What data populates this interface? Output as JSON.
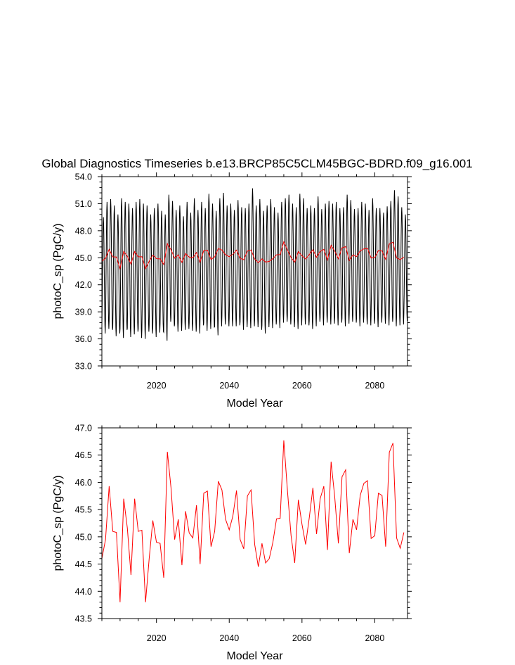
{
  "figure": {
    "title": "Global Diagnostics Timeseries b.e13.BRCP85C5CLM45BGC-BDRD.f09_g16.001"
  },
  "colors": {
    "monthly_line": "#000000",
    "annual_line": "#ff0000",
    "axes": "#000000"
  },
  "chart_data": [
    {
      "type": "line",
      "xlabel": "Model Year",
      "ylabel": "photoC_sp (PgC/y)",
      "xlim": [
        2005,
        2089
      ],
      "ylim": [
        33.0,
        54.0
      ],
      "x_ticks": [
        2020,
        2040,
        2060,
        2080
      ],
      "y_ticks": [
        "33.0",
        "36.0",
        "39.0",
        "42.0",
        "45.0",
        "48.0",
        "51.0",
        "54.0"
      ],
      "series": [
        {
          "role": "monthly",
          "color": "#000000",
          "years": [
            2005,
            2006,
            2007,
            2008,
            2009,
            2010,
            2011,
            2012,
            2013,
            2014,
            2015,
            2016,
            2017,
            2018,
            2019,
            2020,
            2021,
            2022,
            2023,
            2024,
            2025,
            2026,
            2027,
            2028,
            2029,
            2030,
            2031,
            2032,
            2033,
            2034,
            2035,
            2036,
            2037,
            2038,
            2039,
            2040,
            2041,
            2042,
            2043,
            2044,
            2045,
            2046,
            2047,
            2048,
            2049,
            2050,
            2051,
            2052,
            2053,
            2054,
            2055,
            2056,
            2057,
            2058,
            2059,
            2060,
            2061,
            2062,
            2063,
            2064,
            2065,
            2066,
            2067,
            2068,
            2069,
            2070,
            2071,
            2072,
            2073,
            2074,
            2075,
            2076,
            2077,
            2078,
            2079,
            2080,
            2081,
            2082,
            2083,
            2084,
            2085,
            2086,
            2087,
            2088
          ],
          "annual_max": [
            49.5,
            51.2,
            51.5,
            50.8,
            49.8,
            51.6,
            51.2,
            51.0,
            50.5,
            51.2,
            51.5,
            51.0,
            50.8,
            49.8,
            50.5,
            51.0,
            50.2,
            49.8,
            52.0,
            51.3,
            50.3,
            50.8,
            49.6,
            51.2,
            50.0,
            51.6,
            50.3,
            51.2,
            50.5,
            52.1,
            51.0,
            50.2,
            51.6,
            52.2,
            50.8,
            51.0,
            50.3,
            51.4,
            50.6,
            50.5,
            51.0,
            52.7,
            50.8,
            51.5,
            50.2,
            50.8,
            51.5,
            50.6,
            50.0,
            51.2,
            51.6,
            52.0,
            51.0,
            50.6,
            52.1,
            51.6,
            50.5,
            50.8,
            50.5,
            51.8,
            50.4,
            51.0,
            51.3,
            51.0,
            51.2,
            50.5,
            50.6,
            52.0,
            51.4,
            50.4,
            50.5,
            51.2,
            51.0,
            50.3,
            51.6,
            50.5,
            50.5,
            50.0,
            50.7,
            51.3,
            52.5,
            51.8,
            50.6,
            49.8
          ],
          "annual_min": [
            36.6,
            37.1,
            37.0,
            36.3,
            36.6,
            36.1,
            37.0,
            36.2,
            36.5,
            36.8,
            36.1,
            36.0,
            36.8,
            36.6,
            36.2,
            36.7,
            36.8,
            35.8,
            37.9,
            37.4,
            36.8,
            36.9,
            37.0,
            37.1,
            36.9,
            36.8,
            36.6,
            37.5,
            36.9,
            37.1,
            37.3,
            36.4,
            37.4,
            37.6,
            37.4,
            37.4,
            37.4,
            37.5,
            37.0,
            37.3,
            37.2,
            37.4,
            37.3,
            37.0,
            36.6,
            37.3,
            37.2,
            37.6,
            37.2,
            37.8,
            37.9,
            37.6,
            37.3,
            37.1,
            37.5,
            37.6,
            37.5,
            37.1,
            37.4,
            37.9,
            37.5,
            37.8,
            37.6,
            37.7,
            37.5,
            37.8,
            37.4,
            37.7,
            37.9,
            37.8,
            37.4,
            37.8,
            37.6,
            37.5,
            37.7,
            37.3,
            37.8,
            37.7,
            37.5,
            37.9,
            37.4,
            37.5,
            37.6,
            38.0
          ]
        },
        {
          "role": "annual_mean",
          "color": "#ff0000",
          "x": [
            2005,
            2006,
            2007,
            2008,
            2009,
            2010,
            2011,
            2012,
            2013,
            2014,
            2015,
            2016,
            2017,
            2018,
            2019,
            2020,
            2021,
            2022,
            2023,
            2024,
            2025,
            2026,
            2027,
            2028,
            2029,
            2030,
            2031,
            2032,
            2033,
            2034,
            2035,
            2036,
            2037,
            2038,
            2039,
            2040,
            2041,
            2042,
            2043,
            2044,
            2045,
            2046,
            2047,
            2048,
            2049,
            2050,
            2051,
            2052,
            2053,
            2054,
            2055,
            2056,
            2057,
            2058,
            2059,
            2060,
            2061,
            2062,
            2063,
            2064,
            2065,
            2066,
            2067,
            2068,
            2069,
            2070,
            2071,
            2072,
            2073,
            2074,
            2075,
            2076,
            2077,
            2078,
            2079,
            2080,
            2081,
            2082,
            2083,
            2084,
            2085,
            2086,
            2087,
            2088
          ],
          "y": [
            44.6,
            44.95,
            45.93,
            45.1,
            45.08,
            43.8,
            45.7,
            45.16,
            44.3,
            45.7,
            45.1,
            45.12,
            43.8,
            44.6,
            45.3,
            44.9,
            44.88,
            44.25,
            46.56,
            45.9,
            44.95,
            45.32,
            44.48,
            45.47,
            45.07,
            44.98,
            45.58,
            44.5,
            45.8,
            45.84,
            44.82,
            45.1,
            46.02,
            45.86,
            45.32,
            45.13,
            45.38,
            45.85,
            44.95,
            44.78,
            45.75,
            45.86,
            44.86,
            44.45,
            44.88,
            44.52,
            44.6,
            44.9,
            45.33,
            45.34,
            46.77,
            45.85,
            45.02,
            44.52,
            45.68,
            45.23,
            44.86,
            45.35,
            45.9,
            45.05,
            45.7,
            45.93,
            44.76,
            46.38,
            45.73,
            44.88,
            46.1,
            46.23,
            44.7,
            45.32,
            45.13,
            45.76,
            45.98,
            46.03,
            44.97,
            45.02,
            45.8,
            45.76,
            44.82,
            46.55,
            46.72,
            44.98,
            44.79,
            45.08
          ]
        }
      ]
    },
    {
      "type": "line",
      "xlabel": "Model Year",
      "ylabel": "photoC_sp (PgC/y)",
      "xlim": [
        2005,
        2089
      ],
      "ylim": [
        43.5,
        47.0
      ],
      "x_ticks": [
        2020,
        2040,
        2060,
        2080
      ],
      "y_ticks": [
        "43.5",
        "44.0",
        "44.5",
        "45.0",
        "45.5",
        "46.0",
        "46.5",
        "47.0"
      ],
      "series": [
        {
          "role": "annual_mean",
          "color": "#ff0000",
          "x": [
            2005,
            2006,
            2007,
            2008,
            2009,
            2010,
            2011,
            2012,
            2013,
            2014,
            2015,
            2016,
            2017,
            2018,
            2019,
            2020,
            2021,
            2022,
            2023,
            2024,
            2025,
            2026,
            2027,
            2028,
            2029,
            2030,
            2031,
            2032,
            2033,
            2034,
            2035,
            2036,
            2037,
            2038,
            2039,
            2040,
            2041,
            2042,
            2043,
            2044,
            2045,
            2046,
            2047,
            2048,
            2049,
            2050,
            2051,
            2052,
            2053,
            2054,
            2055,
            2056,
            2057,
            2058,
            2059,
            2060,
            2061,
            2062,
            2063,
            2064,
            2065,
            2066,
            2067,
            2068,
            2069,
            2070,
            2071,
            2072,
            2073,
            2074,
            2075,
            2076,
            2077,
            2078,
            2079,
            2080,
            2081,
            2082,
            2083,
            2084,
            2085,
            2086,
            2087,
            2088
          ],
          "y": [
            44.6,
            44.95,
            45.93,
            45.1,
            45.08,
            43.8,
            45.7,
            45.16,
            44.3,
            45.7,
            45.1,
            45.12,
            43.8,
            44.6,
            45.3,
            44.9,
            44.88,
            44.25,
            46.56,
            45.9,
            44.95,
            45.32,
            44.48,
            45.47,
            45.07,
            44.98,
            45.58,
            44.5,
            45.8,
            45.84,
            44.82,
            45.1,
            46.02,
            45.86,
            45.32,
            45.13,
            45.38,
            45.85,
            44.95,
            44.78,
            45.75,
            45.86,
            44.86,
            44.45,
            44.88,
            44.52,
            44.6,
            44.9,
            45.33,
            45.34,
            46.77,
            45.85,
            45.02,
            44.52,
            45.68,
            45.23,
            44.86,
            45.35,
            45.9,
            45.05,
            45.7,
            45.93,
            44.76,
            46.38,
            45.73,
            44.88,
            46.1,
            46.23,
            44.7,
            45.32,
            45.13,
            45.76,
            45.98,
            46.03,
            44.97,
            45.02,
            45.8,
            45.76,
            44.82,
            46.55,
            46.72,
            44.98,
            44.79,
            45.08
          ]
        }
      ]
    }
  ]
}
